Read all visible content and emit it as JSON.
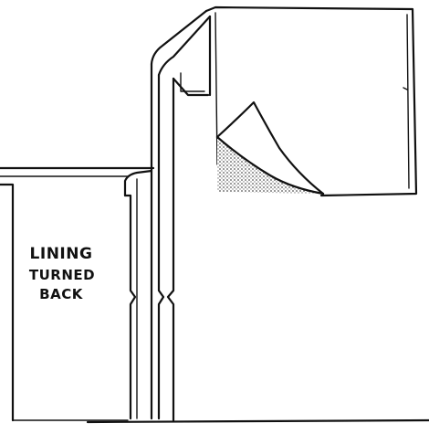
{
  "label": {
    "line1": "LINING",
    "line2": "TURNED",
    "line3": "BACK"
  },
  "colors": {
    "ink": "#111111",
    "paper": "#ffffff",
    "shading": "#555555"
  }
}
